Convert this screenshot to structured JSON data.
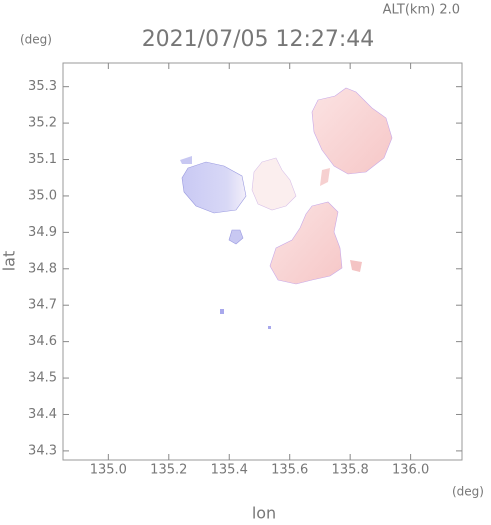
{
  "chart_data": {
    "type": "map",
    "title": "2021/07/05 12:27:44",
    "subtitle": "ALT(km)  2.0",
    "x_label": "lon",
    "y_label": "lat",
    "x_unit": "(deg)",
    "y_unit": "(deg)",
    "xlim": [
      134.85,
      136.17
    ],
    "ylim": [
      34.275,
      35.365
    ],
    "xticks": [
      {
        "value": 135,
        "label": "135.0"
      },
      135.2,
      135.4,
      135.6,
      135.8,
      {
        "value": 136,
        "label": "136.0"
      }
    ],
    "yticks": [
      34.3,
      34.4,
      34.5,
      34.6,
      34.7,
      34.8,
      34.9,
      {
        "value": 35,
        "label": "35.0"
      },
      35.1,
      35.2,
      35.3
    ]
  }
}
